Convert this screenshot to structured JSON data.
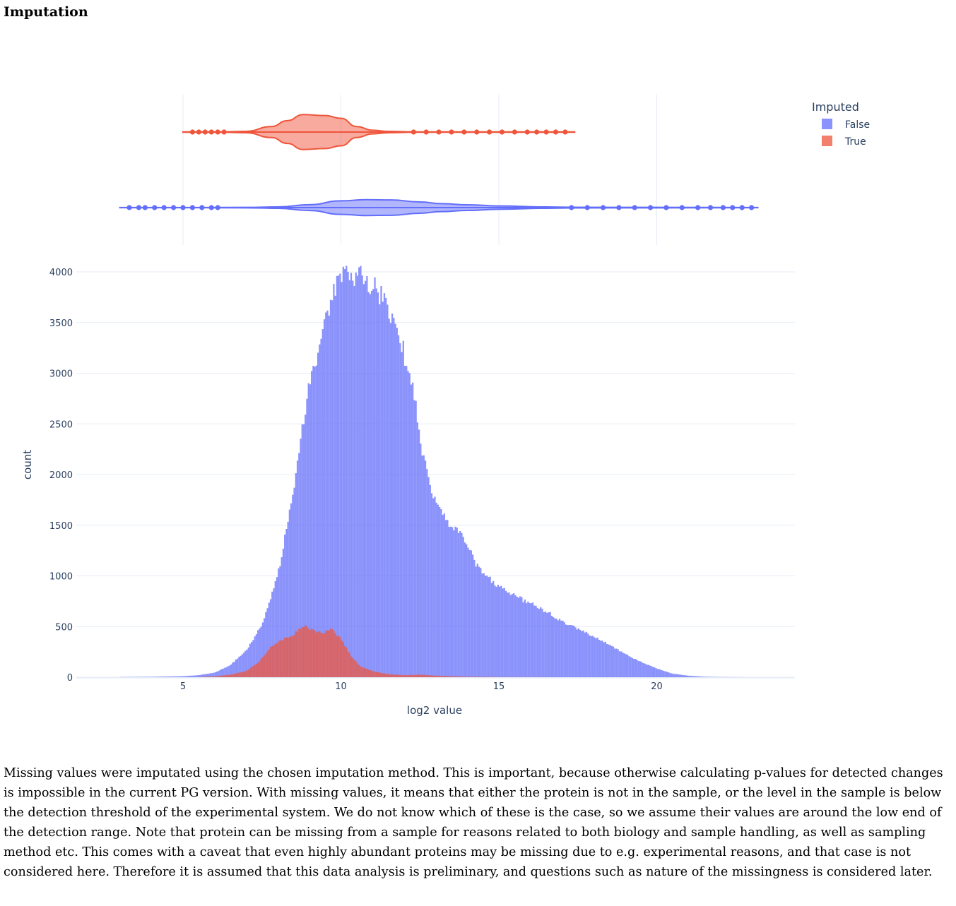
{
  "section_title": "Imputation",
  "description": "Missing values were imputated using the chosen imputation method. This is important, because otherwise calculating p-values for detected changes is impossible in the current PG version. With missing values, it means that either the protein is not in the sample, or the level in the sample is below the detection threshold of the experimental system. We do not know which of these is the case, so we assume their values are around the low end of the detection range. Note that protein can be missing from a sample for reasons related to both biology and sample handling, as well as sampling method etc. This comes with a caveat that even highly abundant proteins may be missing due to e.g. experimental reasons, and that case is not considered here. Therefore it is assumed that this data analysis is preliminary, and questions such as nature of the missingness is considered later.",
  "colors": {
    "false": "#636efa",
    "true": "#ef553b",
    "grid": "#e5ecf6",
    "text": "#2a3f5f"
  },
  "chart_data": [
    {
      "type": "violin",
      "orientation": "horizontal",
      "xlim": [
        2.8,
        23.5
      ],
      "grid": true,
      "series": [
        {
          "name": "False",
          "color": "#636efa",
          "whisker": [
            3.0,
            23.2
          ],
          "density": [
            [
              3.0,
              0.01
            ],
            [
              5.5,
              0.01
            ],
            [
              7.0,
              0.02
            ],
            [
              8.0,
              0.06
            ],
            [
              9.0,
              0.26
            ],
            [
              10.0,
              0.6
            ],
            [
              10.8,
              0.7
            ],
            [
              11.6,
              0.68
            ],
            [
              12.5,
              0.5
            ],
            [
              13.2,
              0.35
            ],
            [
              14.0,
              0.25
            ],
            [
              15.0,
              0.15
            ],
            [
              16.5,
              0.06
            ],
            [
              17.3,
              0.03
            ],
            [
              20.0,
              0.02
            ],
            [
              23.2,
              0.01
            ]
          ],
          "outliers": [
            3.3,
            3.6,
            3.8,
            4.1,
            4.4,
            4.7,
            5.0,
            5.3,
            5.6,
            5.9,
            6.1,
            17.3,
            17.8,
            18.3,
            18.8,
            19.3,
            19.8,
            20.3,
            20.8,
            21.3,
            21.7,
            22.1,
            22.4,
            22.7,
            23.0
          ]
        },
        {
          "name": "True",
          "color": "#ef553b",
          "whisker": [
            5.0,
            17.4
          ],
          "density": [
            [
              5.0,
              0.01
            ],
            [
              6.2,
              0.01
            ],
            [
              7.0,
              0.04
            ],
            [
              7.8,
              0.3
            ],
            [
              8.3,
              0.62
            ],
            [
              8.8,
              0.95
            ],
            [
              9.5,
              0.9
            ],
            [
              10.0,
              0.75
            ],
            [
              10.5,
              0.3
            ],
            [
              11.0,
              0.1
            ],
            [
              11.5,
              0.04
            ],
            [
              12.3,
              0.01
            ],
            [
              17.4,
              0.01
            ]
          ],
          "outliers": [
            5.3,
            5.5,
            5.7,
            5.9,
            6.1,
            6.3,
            12.3,
            12.7,
            13.1,
            13.5,
            13.9,
            14.3,
            14.7,
            15.1,
            15.5,
            15.9,
            16.2,
            16.5,
            16.8,
            17.1
          ]
        }
      ]
    },
    {
      "type": "bar",
      "barmode": "overlay",
      "xlabel": "log2 value",
      "ylabel": "count",
      "xlim": [
        2.8,
        23.5
      ],
      "ylim": [
        0,
        4000
      ],
      "xticks": [
        5,
        10,
        15,
        20
      ],
      "yticks": [
        0,
        500,
        1000,
        1500,
        2000,
        2500,
        3000,
        3500,
        4000
      ],
      "grid": true,
      "bin_width": 0.05,
      "series": [
        {
          "name": "False",
          "color": "#636efa",
          "x": [
            3.0,
            4.0,
            5.0,
            5.5,
            6.0,
            6.5,
            7.0,
            7.5,
            8.0,
            8.5,
            9.0,
            9.5,
            9.8,
            10.0,
            10.3,
            10.6,
            10.9,
            11.2,
            11.5,
            11.8,
            12.0,
            12.3,
            12.6,
            12.9,
            13.2,
            13.5,
            13.8,
            14.0,
            14.3,
            14.6,
            15.0,
            15.5,
            16.0,
            16.5,
            17.0,
            17.5,
            18.0,
            18.5,
            19.0,
            19.5,
            20.0,
            20.5,
            21.0,
            21.5,
            22.0,
            23.0
          ],
          "values": [
            2,
            4,
            10,
            20,
            45,
            120,
            260,
            520,
            1000,
            1850,
            2900,
            3500,
            3800,
            3950,
            3960,
            3950,
            3900,
            3800,
            3650,
            3450,
            3200,
            2800,
            2200,
            1800,
            1600,
            1500,
            1400,
            1300,
            1100,
            1000,
            900,
            800,
            730,
            650,
            550,
            480,
            400,
            320,
            230,
            150,
            85,
            35,
            15,
            5,
            2,
            0
          ]
        },
        {
          "name": "True",
          "color": "#ef553b",
          "x": [
            5.5,
            6.0,
            6.5,
            7.0,
            7.4,
            7.8,
            8.2,
            8.5,
            8.8,
            9.1,
            9.4,
            9.7,
            10.0,
            10.3,
            10.6,
            11.0,
            11.5,
            12.0,
            12.5,
            13.0,
            14.0,
            15.0,
            17.5
          ],
          "values": [
            2,
            8,
            25,
            60,
            150,
            310,
            380,
            420,
            510,
            470,
            430,
            470,
            380,
            220,
            110,
            60,
            30,
            20,
            25,
            15,
            5,
            2,
            0
          ]
        }
      ]
    }
  ],
  "legend": {
    "title": "Imputed",
    "placement": "top-right",
    "items": [
      {
        "label": "False",
        "color": "#636efa"
      },
      {
        "label": "True",
        "color": "#ef553b"
      }
    ]
  }
}
